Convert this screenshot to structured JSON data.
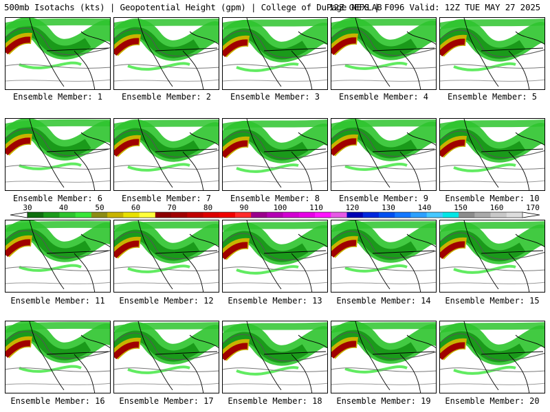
{
  "header": {
    "left": "500mb Isotachs (kts) | Geopotential Height (gpm) | College of DuPage NEXLAB",
    "right": "12Z GEFS | F096 Valid: 12Z TUE MAY 27 2025"
  },
  "panels": [
    {
      "caption": "Ensemble Member: 1"
    },
    {
      "caption": "Ensemble Member: 2"
    },
    {
      "caption": "Ensemble Member: 3"
    },
    {
      "caption": "Ensemble Member: 4"
    },
    {
      "caption": "Ensemble Member: 5"
    },
    {
      "caption": "Ensemble Member: 6"
    },
    {
      "caption": "Ensemble Member: 7"
    },
    {
      "caption": "Ensemble Member: 8"
    },
    {
      "caption": "Ensemble Member: 9"
    },
    {
      "caption": "Ensemble Member: 10"
    },
    {
      "caption": "Ensemble Member: 11"
    },
    {
      "caption": "Ensemble Member: 12"
    },
    {
      "caption": "Ensemble Member: 13"
    },
    {
      "caption": "Ensemble Member: 14"
    },
    {
      "caption": "Ensemble Member: 15"
    },
    {
      "caption": "Ensemble Member: 16"
    },
    {
      "caption": "Ensemble Member: 17"
    },
    {
      "caption": "Ensemble Member: 18"
    },
    {
      "caption": "Ensemble Member: 19"
    },
    {
      "caption": "Ensemble Member: 20"
    }
  ],
  "colorbar": {
    "labels": [
      "30",
      "40",
      "50",
      "60",
      "70",
      "80",
      "90",
      "100",
      "110",
      "120",
      "130",
      "140",
      "150",
      "160",
      "170"
    ],
    "colors": [
      "#0f6e0f",
      "#1a9a1a",
      "#2ec42e",
      "#39e639",
      "#8c8c14",
      "#c8b400",
      "#e8e000",
      "#ffff3c",
      "#8c0000",
      "#a00000",
      "#c00000",
      "#dc0000",
      "#f00000",
      "#ff2a2a",
      "#9b008c",
      "#b400b4",
      "#d200d2",
      "#e600e6",
      "#ff14ff",
      "#e65ae6",
      "#0000b4",
      "#0028dc",
      "#0050f0",
      "#1478ff",
      "#2ca0ff",
      "#46c8ff",
      "#00e6e6",
      "#8c8c8c",
      "#aaaaaa",
      "#c8c8c8",
      "#dcdcdc"
    ]
  }
}
